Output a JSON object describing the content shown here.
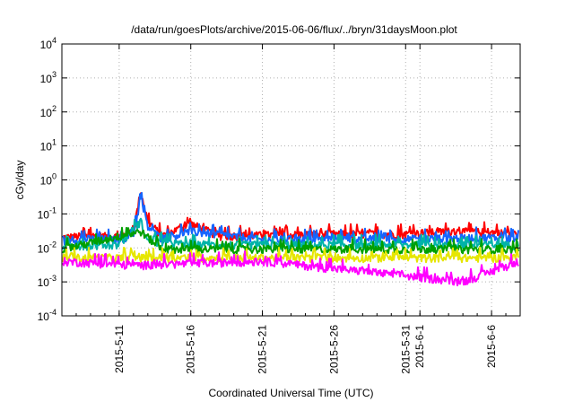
{
  "chart_data": {
    "type": "line",
    "title": "/data/run/goesPlots/archive/2015-06-06/flux/../bryn/31daysMoon.plot",
    "xlabel": "Coordinated Universal Time (UTC)",
    "ylabel": "cGy/day",
    "y_scale": "log",
    "ylim": [
      0.0001,
      10000
    ],
    "y_ticks": [
      {
        "value": 0.0001,
        "base": "10",
        "exp": "-4"
      },
      {
        "value": 0.001,
        "base": "10",
        "exp": "-3"
      },
      {
        "value": 0.01,
        "base": "10",
        "exp": "-2"
      },
      {
        "value": 0.1,
        "base": "10",
        "exp": "-1"
      },
      {
        "value": 1,
        "base": "10",
        "exp": "0"
      },
      {
        "value": 10,
        "base": "10",
        "exp": "1"
      },
      {
        "value": 100,
        "base": "10",
        "exp": "2"
      },
      {
        "value": 1000,
        "base": "10",
        "exp": "3"
      },
      {
        "value": 10000,
        "base": "10",
        "exp": "4"
      }
    ],
    "xlim": [
      "2015-05-07",
      "2015-06-08"
    ],
    "x_ticks": [
      "2015-5-11",
      "2015-5-16",
      "2015-5-21",
      "2015-5-26",
      "2015-5-31",
      "2015-6-1",
      "2015-6-6"
    ],
    "x_tick_dates": [
      "2015-05-11",
      "2015-05-16",
      "2015-05-21",
      "2015-05-26",
      "2015-05-31",
      "2015-06-01",
      "2015-06-06"
    ],
    "grid": true,
    "series": [
      {
        "color": "#ff0000",
        "baseline": 0.02,
        "points": [
          [
            "2015-05-07",
            0.02
          ],
          [
            "2015-05-09",
            0.022
          ],
          [
            "2015-05-11",
            0.021
          ],
          [
            "2015-05-12",
            0.03
          ],
          [
            "2015-05-12T12:00",
            0.45
          ],
          [
            "2015-05-13",
            0.06
          ],
          [
            "2015-05-14",
            0.022
          ],
          [
            "2015-05-16",
            0.05
          ],
          [
            "2015-05-18",
            0.022
          ],
          [
            "2015-05-21",
            0.023
          ],
          [
            "2015-05-26",
            0.025
          ],
          [
            "2015-05-31",
            0.025
          ],
          [
            "2015-06-03",
            0.03
          ],
          [
            "2015-06-06",
            0.028
          ],
          [
            "2015-06-08",
            0.025
          ]
        ]
      },
      {
        "color": "#1565ff",
        "baseline": 0.015,
        "points": [
          [
            "2015-05-07",
            0.016
          ],
          [
            "2015-05-09",
            0.018
          ],
          [
            "2015-05-11",
            0.017
          ],
          [
            "2015-05-12",
            0.025
          ],
          [
            "2015-05-12T12:00",
            0.28
          ],
          [
            "2015-05-13",
            0.04
          ],
          [
            "2015-05-14",
            0.018
          ],
          [
            "2015-05-16",
            0.03
          ],
          [
            "2015-05-21",
            0.017
          ],
          [
            "2015-05-26",
            0.018
          ],
          [
            "2015-05-31",
            0.018
          ],
          [
            "2015-06-06",
            0.02
          ],
          [
            "2015-06-08",
            0.018
          ]
        ]
      },
      {
        "color": "#00b3a8",
        "baseline": 0.011,
        "points": [
          [
            "2015-05-07",
            0.011
          ],
          [
            "2015-05-11",
            0.012
          ],
          [
            "2015-05-12T12:00",
            0.06
          ],
          [
            "2015-05-13",
            0.015
          ],
          [
            "2015-05-16",
            0.012
          ],
          [
            "2015-05-21",
            0.012
          ],
          [
            "2015-05-26",
            0.012
          ],
          [
            "2015-05-31",
            0.012
          ],
          [
            "2015-06-06",
            0.012
          ],
          [
            "2015-06-08",
            0.012
          ]
        ]
      },
      {
        "color": "#00a000",
        "baseline": 0.009,
        "points": [
          [
            "2015-05-07",
            0.009
          ],
          [
            "2015-05-12T12:00",
            0.03
          ],
          [
            "2015-05-14",
            0.009
          ],
          [
            "2015-05-21",
            0.009
          ],
          [
            "2015-05-31",
            0.009
          ],
          [
            "2015-06-08",
            0.009
          ]
        ]
      },
      {
        "color": "#e6e600",
        "baseline": 0.005,
        "points": [
          [
            "2015-05-07",
            0.005
          ],
          [
            "2015-05-21",
            0.005
          ],
          [
            "2015-06-08",
            0.005
          ]
        ]
      },
      {
        "color": "#ff00ff",
        "baseline": 0.004,
        "points": [
          [
            "2015-05-07",
            0.004
          ],
          [
            "2015-05-12",
            0.003
          ],
          [
            "2015-05-21",
            0.004
          ],
          [
            "2015-06-04",
            0.001
          ],
          [
            "2015-06-08",
            0.004
          ]
        ]
      }
    ]
  }
}
